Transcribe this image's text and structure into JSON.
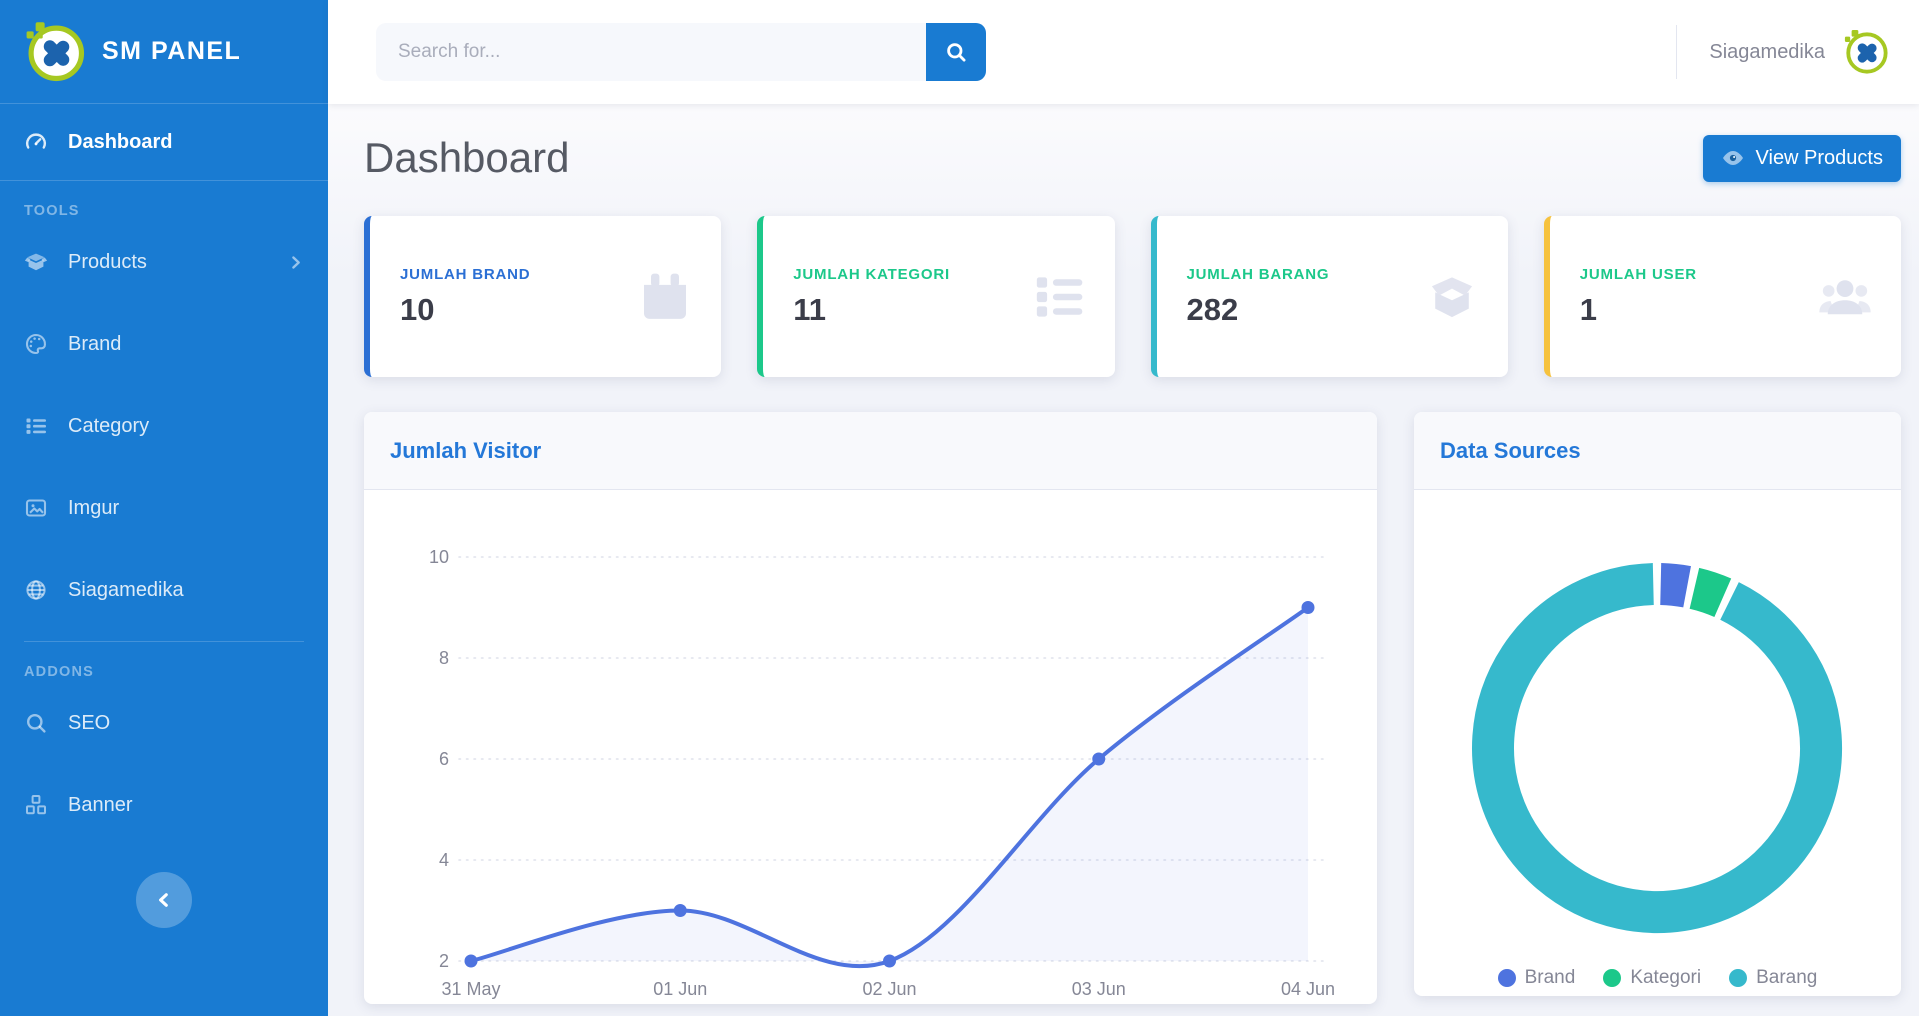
{
  "colors": {
    "primary": "#197bd2",
    "card_title_blue": "#2478d8",
    "stat_blue": "#2b6fd4",
    "green": "#1cc88a",
    "teal": "#36b9cc",
    "yellow": "#f6c23e",
    "text_grey": "#858796"
  },
  "sidebar": {
    "brand_title": "SM PANEL",
    "dashboard_label": "Dashboard",
    "sections": [
      {
        "heading": "TOOLS",
        "items": [
          {
            "label": "Products",
            "icon": "box-open-icon",
            "expandable": true
          },
          {
            "label": "Brand",
            "icon": "palette-icon"
          },
          {
            "label": "Category",
            "icon": "list-icon"
          },
          {
            "label": "Imgur",
            "icon": "image-icon"
          },
          {
            "label": "Siagamedika",
            "icon": "globe-icon"
          }
        ]
      },
      {
        "heading": "ADDONS",
        "items": [
          {
            "label": "SEO",
            "icon": "search-icon"
          },
          {
            "label": "Banner",
            "icon": "cubes-icon"
          }
        ]
      }
    ]
  },
  "topbar": {
    "search_placeholder": "Search for...",
    "user_name": "Siagamedika"
  },
  "page": {
    "title": "Dashboard",
    "view_products_label": "View Products"
  },
  "stat_cards": [
    {
      "label": "JUMLAH BRAND",
      "value": "10",
      "accent": "#2b6fd4",
      "label_color": "#2b6fd4",
      "icon": "calendar-icon"
    },
    {
      "label": "JUMLAH KATEGORI",
      "value": "11",
      "accent": "#1cc88a",
      "label_color": "#1cc88a",
      "icon": "list-icon"
    },
    {
      "label": "JUMLAH BARANG",
      "value": "282",
      "accent": "#36b9cc",
      "label_color": "#1cc88a",
      "icon": "box-open-icon"
    },
    {
      "label": "JUMLAH USER",
      "value": "1",
      "accent": "#f6c23e",
      "label_color": "#1cc88a",
      "icon": "users-icon"
    }
  ],
  "chart_data": [
    {
      "type": "line",
      "title": "Jumlah Visitor",
      "x": [
        "31 May",
        "01 Jun",
        "02 Jun",
        "03 Jun",
        "04 Jun"
      ],
      "series": [
        {
          "name": "Visitor",
          "values": [
            2,
            3,
            2,
            6,
            9
          ]
        }
      ],
      "ylim": [
        2,
        10
      ],
      "yticks": [
        2,
        4,
        6,
        8,
        10
      ],
      "grid": "dotted",
      "legend_position": "none",
      "line_color": "#4e73df",
      "point_color": "#4e73df",
      "area_fill": "rgba(78,115,223,0.07)",
      "tick_color": "#858796"
    },
    {
      "type": "donut",
      "title": "Data Sources",
      "labels": [
        "Brand",
        "Kategori",
        "Barang"
      ],
      "values": [
        10,
        11,
        282
      ],
      "colors": [
        "#4e73df",
        "#1cc88a",
        "#36b9cc"
      ],
      "legend_position": "bottom"
    }
  ]
}
